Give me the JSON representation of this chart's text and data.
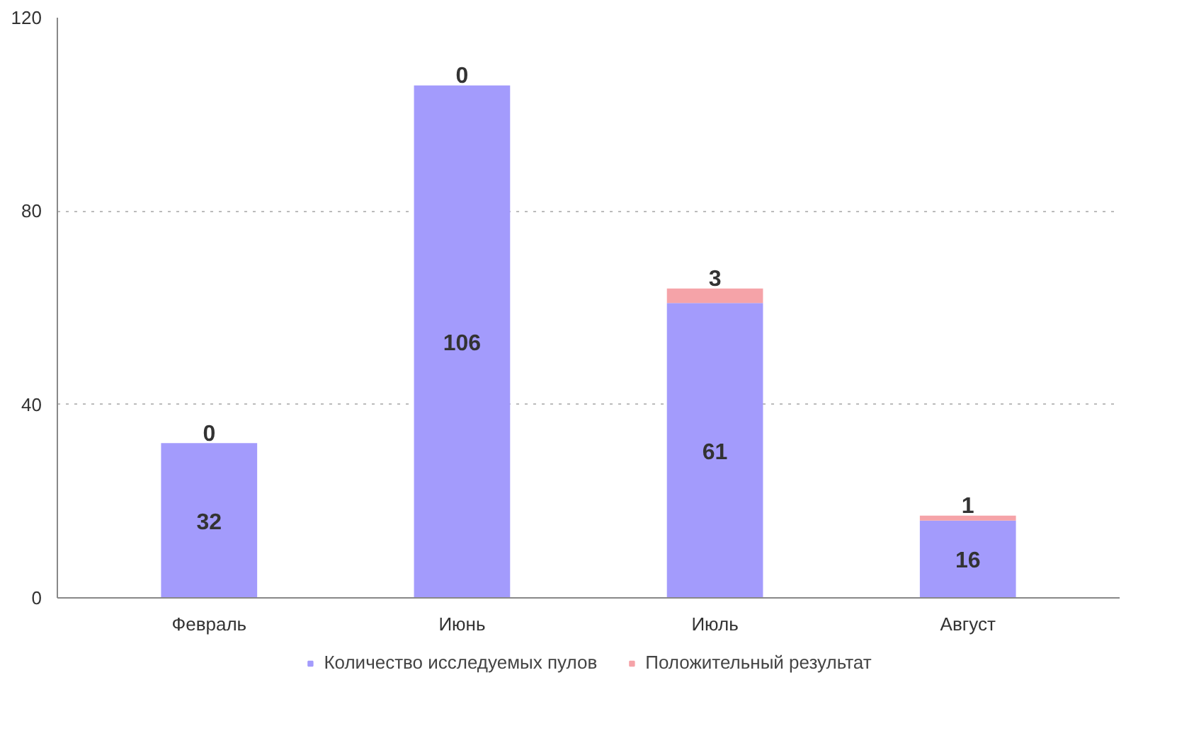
{
  "chart_data": {
    "type": "bar",
    "stacked": true,
    "categories": [
      "Февраль",
      "Июнь",
      "Июль",
      "Август"
    ],
    "series": [
      {
        "name": "Количество исследуемых пулов",
        "color": "#a39bfc",
        "values": [
          32,
          106,
          61,
          16
        ]
      },
      {
        "name": "Положительный результат",
        "color": "#f5a3a8",
        "values": [
          0,
          0,
          3,
          1
        ]
      }
    ],
    "ylim": [
      0,
      120
    ],
    "yticks": [
      0,
      40,
      80,
      120
    ],
    "grid": "y",
    "legend": "bottom",
    "data_labels": true
  }
}
